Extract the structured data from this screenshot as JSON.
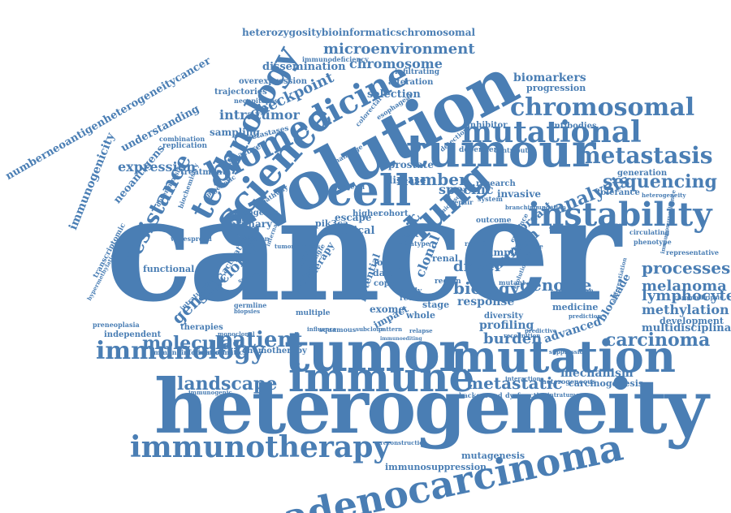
{
  "style": {
    "word_color": "#4a7eb4",
    "background": "#ffffff"
  },
  "words": {
    "cancer": "cancer",
    "heterogeneity": "heterogeneity",
    "evolution": "evolution",
    "tumor": "tumor",
    "tumour": "tumour",
    "mutation": "mutation",
    "immune": "immune",
    "adenocarcinoma": "adenocarcinoma",
    "immunotherapy": "immunotherapy",
    "science": "science",
    "biomedicine": "biomedicine",
    "technology": "technology",
    "cell": "cell",
    "lung": "lung",
    "mutational": "mutational",
    "instability": "instability",
    "chromosomal": "chromosomal",
    "metastasis": "metastasis",
    "immunology": "immunology",
    "sequencing": "sequencing",
    "analysis": "analysis",
    "patient": "patient",
    "molecular": "molecular",
    "resistance": "resistance",
    "landscape": "landscape",
    "carcinoma": "carcinoma",
    "metastatic": "metastatic",
    "genome": "genome",
    "biology": "biology",
    "processes": "processes",
    "melanoma": "melanoma",
    "lymphocyte": "lymphocyte",
    "methylation": "methylation",
    "burden": "burden",
    "driver": "driver",
    "number": "number",
    "specific": "specific",
    "genetic": "genetic",
    "subclonal": "subclonal",
    "somatic": "somatic",
    "clonal": "clonal",
    "human": "human",
    "breast": "breast",
    "microenvironment": "microenvironment",
    "heterozygositybioinformaticschromosomal": "heterozygositybioinformaticschromosomal",
    "chromosome": "chromosome",
    "checkpoint": "checkpoint",
    "intratumor": "intratumor",
    "dissemination": "dissemination",
    "selection": "selection",
    "biomarkers": "biomarkers",
    "progression": "progression",
    "expression": "expression",
    "understanding": "understanding",
    "numberneoantigenheterogeneitycancer": "numberneoantigenheterogeneitycancer",
    "immunogenicity": "immunogenicity",
    "neoantigens": "neoantigens",
    "mechanism": "mechanism",
    "carcinogenesis": "carcinogenesis",
    "mutagenesis": "mutagenesis",
    "immunosuppression": "immunosuppression",
    "response": "response",
    "profiling": "profiling",
    "advanced": "advanced",
    "multidisciplinary": "multidisciplinary",
    "blockade": "blockade",
    "development": "development",
    "medicine": "medicine",
    "diversity": "diversity",
    "stage": "stage",
    "exome": "exome",
    "whole": "whole",
    "sample": "sample",
    "prostate": "prostate",
    "disease": "disease",
    "invasive": "invasive",
    "research": "research",
    "clinical": "clinical",
    "escape": "escape",
    "primary": "primary",
    "oncogenic": "oncogenic",
    "functional": "functional",
    "therapies": "therapies",
    "independent": "independent",
    "chemotherapy": "chemotherapy",
    "immunoinformatics": "immunoinformatics",
    "bioinformatics": "bioinformatics",
    "preneoplasia": "preneoplasia",
    "sampling": "sampling",
    "trajectories": "trajectories",
    "overexpression": "overexpression",
    "alteration": "alteration",
    "infiltrating": "infiltrating",
    "immunodeficiency": "immunodeficiency",
    "antibodies": "antibodies",
    "inhibitor": "inhibitor",
    "dependent": "dependent",
    "contribute": "contribute",
    "generation": "generation",
    "tolerance": "tolerance",
    "heterogeneity_small": "heterogeneity",
    "representative": "representative",
    "chromothripsis": "chromothripsis",
    "treatment": "treatment",
    "signature": "signature",
    "metastases": "metastases",
    "replication": "replication",
    "combination": "combination",
    "pik3ca": "pik3ca",
    "higher": "higher",
    "cohort": "cohort",
    "renal": "renal",
    "loss": "loss",
    "data": "data",
    "copy": "copy",
    "survival": "survival",
    "therapy": "therapy",
    "peptide": "peptide",
    "potential": "potential",
    "region": "region",
    "impact": "impact",
    "multiple": "multiple",
    "transcriptomic": "transcriptomic",
    "widespread": "widespread",
    "intratumoral": "intratumoral",
    "squamous": "squamous",
    "background": "background",
    "dysfunction": "dysfunction",
    "heterogeneous": "heterogeneous",
    "intratumour": "intratumour",
    "outcome": "outcome",
    "mutant": "mutant",
    "study": "study",
    "reveal": "reveal",
    "event": "event",
    "influence": "influence",
    "subclone": "subclone",
    "pattern": "pattern",
    "immunoediting": "immunoediting",
    "differentiation": "differentiation",
    "prediction": "prediction",
    "regulation": "regulation",
    "phenotype": "phenotype",
    "circulating": "circulating",
    "suppression": "suppression",
    "recognition": "recognition",
    "neoepitopes": "neoepitopes",
    "immunogenic": "immunogenic",
    "reconstruction": "reconstruction",
    "epigenetic": "epigenetic",
    "deterministic": "deterministic",
    "evasion": "evasion",
    "hypermethylation": "hypermethylation",
    "intra": "intra",
    "type": "type",
    "result": "result",
    "general": "general",
    "repair": "repair",
    "system": "system",
    "pathway": "pathway",
    "detection": "detection",
    "esophageal": "esophageal",
    "colorectal": "colorectal",
    "challenge": "challenge",
    "biochemistry": "biochemistry",
    "microscopic": "microscopic",
    "germline": "germline",
    "biopsies": "biopsies",
    "spectrum": "spectrum",
    "tumorigenesis": "tumorigenesis",
    "evolutionary": "evolutionary",
    "monoclonal": "monoclonal",
    "predictive": "predictive",
    "relapse": "relapse",
    "activation": "activation",
    "interaction": "interaction",
    "internal": "internal",
    "genomic": "genomic",
    "lineage": "lineage",
    "branching": "branching",
    "foundation": "foundation",
    "immunosurveillance": "immunosurveillance",
    "evidence": "evidence",
    "single": "single"
  }
}
